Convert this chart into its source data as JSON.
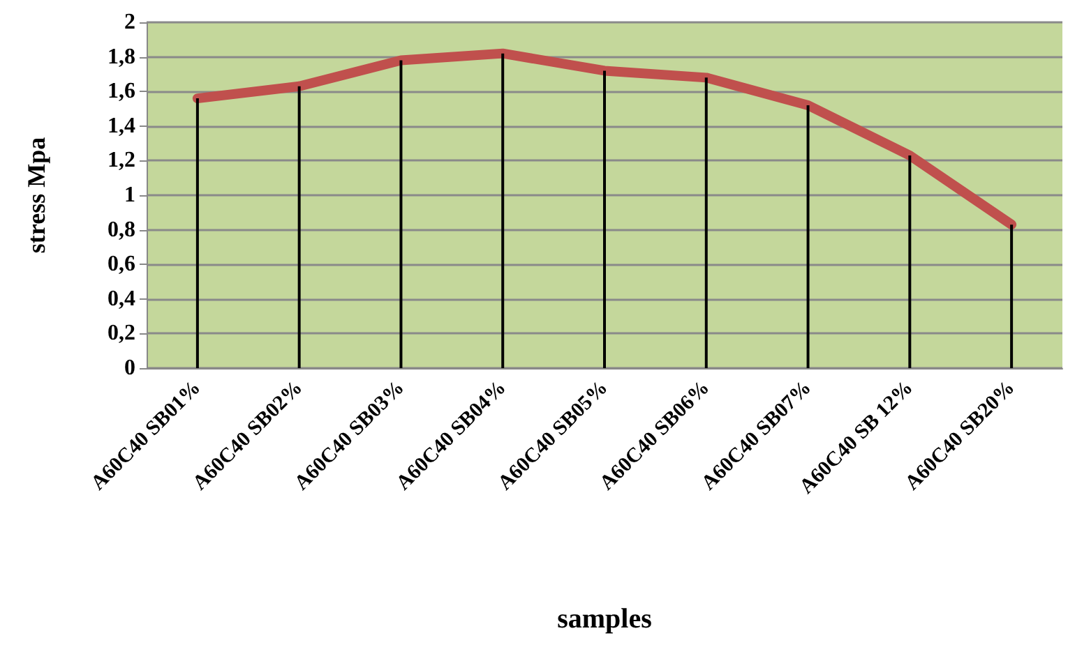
{
  "chart_data": {
    "type": "line",
    "xlabel": "samples",
    "ylabel": "stress Mpa",
    "categories": [
      "A60C40 SB01%",
      "A60C40 SB02%",
      "A60C40 SB03%",
      "A60C40 SB04%",
      "A60C40 SB05%",
      "A60C40 SB06%",
      "A60C40 SB07%",
      "A60C40 SB 12%",
      "A60C40 SB20%"
    ],
    "series": [
      {
        "type": "bar",
        "color": "#000000",
        "values": [
          1.56,
          1.63,
          1.78,
          1.82,
          1.72,
          1.68,
          1.52,
          1.23,
          0.83
        ]
      },
      {
        "color": "#c0504d",
        "values": [
          1.56,
          1.63,
          1.78,
          1.82,
          1.72,
          1.68,
          1.52,
          1.23,
          0.83
        ]
      }
    ],
    "ylim": [
      0,
      2
    ],
    "yticks": [
      0,
      {
        "value": 0.2,
        "label": "0,2"
      },
      {
        "value": 0.4,
        "label": "0,4"
      },
      {
        "value": 0.6,
        "label": "0,6"
      },
      {
        "value": 0.8,
        "label": "0,8"
      },
      1,
      {
        "value": 1.2,
        "label": "1,2"
      },
      {
        "value": 1.4,
        "label": "1,4"
      },
      {
        "value": 1.6,
        "label": "1,6"
      },
      {
        "value": 1.8,
        "label": "1,8"
      },
      2
    ],
    "grid": "y",
    "line_style": "solid"
  }
}
